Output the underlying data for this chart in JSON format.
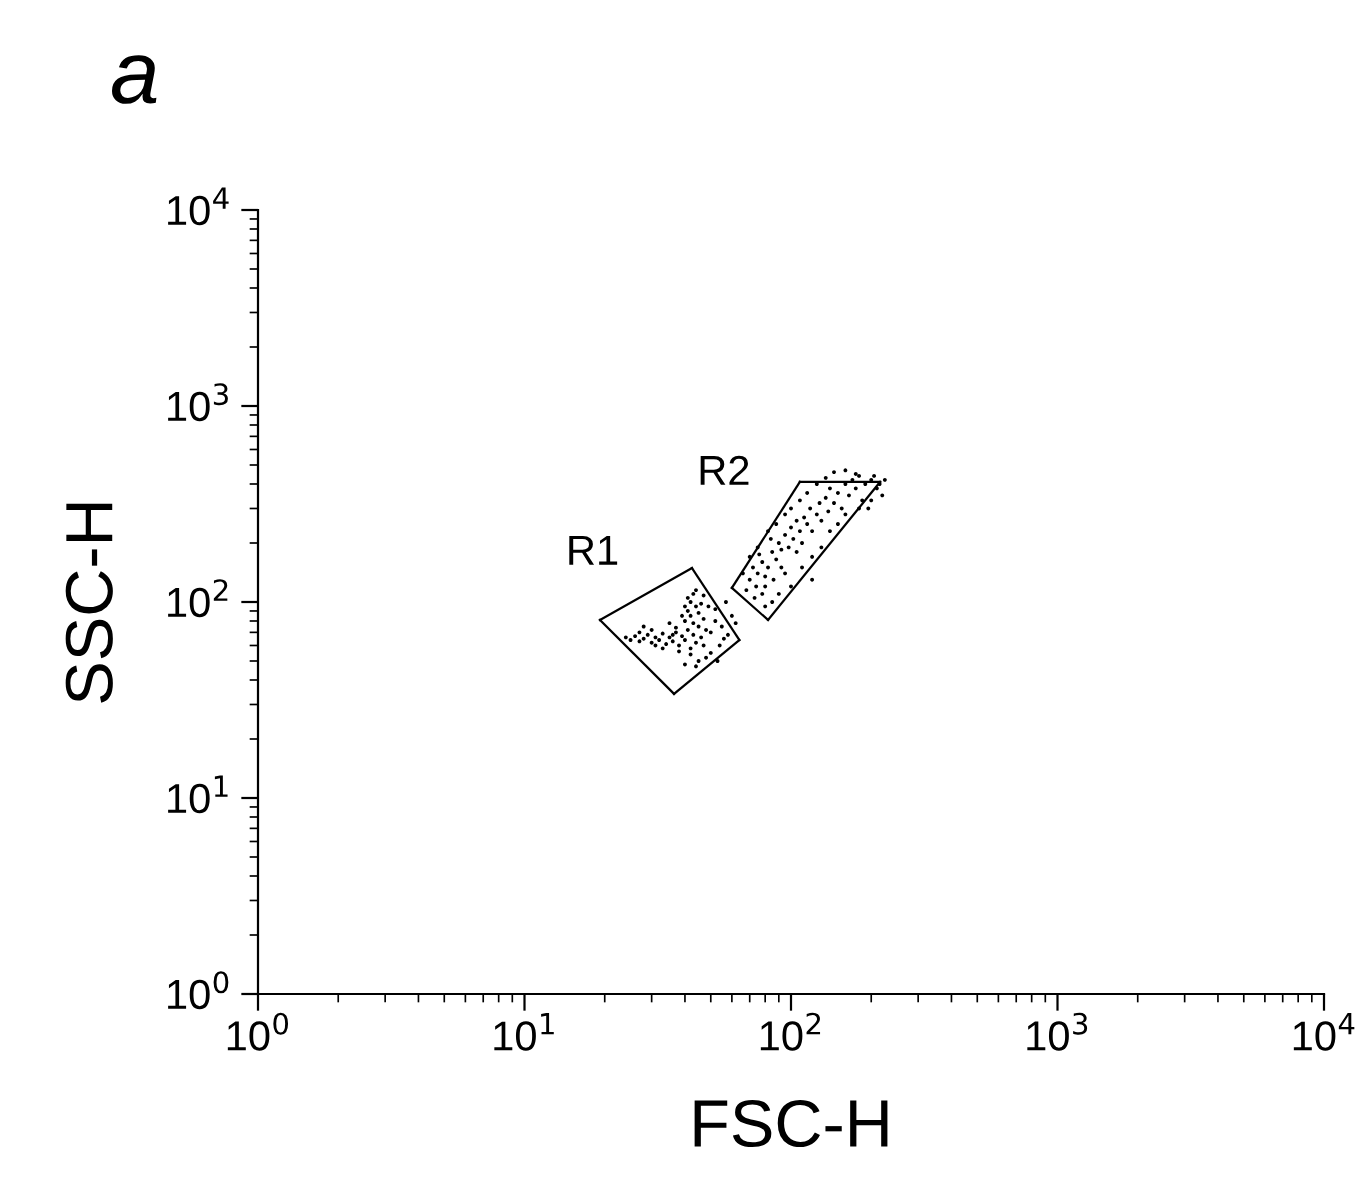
{
  "chart_data": {
    "type": "scatter",
    "title": "a",
    "xlabel": "FSC-H",
    "ylabel": "SSC-H",
    "log": "xy",
    "xlim": [
      1,
      10000
    ],
    "ylim": [
      1,
      10000
    ],
    "xticks": [
      {
        "value": 1,
        "label": "10$^{0}$"
      },
      {
        "value": 10,
        "label": "10$^{1}$"
      },
      {
        "value": 100,
        "label": "10$^{2}$"
      },
      {
        "value": 1000,
        "label": "10$^{3}$"
      },
      {
        "value": 10000,
        "label": "10$^{4}$"
      }
    ],
    "yticks": [
      {
        "value": 1,
        "label": "10$^{0}$"
      },
      {
        "value": 10,
        "label": "10$^{1}$"
      },
      {
        "value": 100,
        "label": "10$^{2}$"
      },
      {
        "value": 1000,
        "label": "10$^{3}$"
      },
      {
        "value": 10000,
        "label": "10$^{4}$"
      }
    ],
    "grid": false,
    "legend": false,
    "marker": "circle",
    "series": [
      {
        "color": "#000000",
        "x": [
          24,
          25,
          26,
          27,
          28,
          29,
          30,
          31,
          32,
          33,
          34,
          35,
          36,
          37,
          38,
          39,
          40,
          41,
          42,
          43,
          44,
          45,
          46,
          47,
          40,
          41,
          42,
          43,
          44,
          42,
          45,
          43,
          41,
          44,
          46,
          40,
          39,
          47,
          48,
          50,
          52,
          55,
          58,
          60,
          54,
          50,
          48,
          45,
          42,
          38,
          33,
          30,
          28,
          35,
          37,
          52,
          57,
          56,
          62,
          49,
          36,
          31,
          27,
          47,
          53,
          44,
          40
        ],
        "values": [
          66,
          64,
          67,
          63,
          65,
          68,
          62,
          66,
          64,
          69,
          61,
          66,
          63,
          70,
          60,
          67,
          64,
          72,
          58,
          68,
          62,
          75,
          66,
          60,
          80,
          90,
          100,
          110,
          95,
          85,
          88,
          78,
          105,
          115,
          98,
          95,
          85,
          82,
          72,
          70,
          80,
          75,
          68,
          85,
          60,
          55,
          52,
          50,
          54,
          56,
          58,
          72,
          75,
          78,
          74,
          92,
          100,
          65,
          78,
          95,
          68,
          60,
          70,
          108,
          50,
          47,
          48
        ]
      },
      {
        "color": "#000000",
        "x": [
          70,
          72,
          75,
          74,
          78,
          80,
          76,
          82,
          85,
          88,
          90,
          84,
          92,
          95,
          98,
          100,
          102,
          105,
          108,
          110,
          112,
          115,
          118,
          120,
          125,
          128,
          130,
          135,
          138,
          140,
          145,
          150,
          155,
          160,
          165,
          170,
          175,
          180,
          190,
          200,
          210,
          220,
          205,
          185,
          195,
          160,
          150,
          140,
          130,
          120,
          110,
          100,
          95,
          90,
          85,
          80,
          78,
          73,
          68,
          66,
          70,
          75,
          82,
          88,
          95,
          100,
          108,
          115,
          125,
          135,
          145,
          160,
          175,
          120,
          105,
          92,
          86,
          80,
          180,
          200,
          215,
          225
        ],
        "values": [
          130,
          150,
          140,
          120,
          160,
          135,
          175,
          150,
          180,
          165,
          200,
          210,
          185,
          220,
          190,
          240,
          210,
          260,
          230,
          200,
          270,
          250,
          300,
          230,
          280,
          320,
          260,
          340,
          290,
          380,
          320,
          360,
          300,
          400,
          350,
          420,
          380,
          440,
          400,
          420,
          380,
          350,
          440,
          330,
          300,
          280,
          250,
          230,
          190,
          170,
          150,
          120,
          140,
          110,
          100,
          95,
          110,
          105,
          115,
          140,
          170,
          190,
          230,
          250,
          280,
          300,
          330,
          360,
          400,
          430,
          460,
          470,
          450,
          130,
          180,
          150,
          130,
          120,
          300,
          330,
          400,
          420
        ]
      },
      {
        "type": "line",
        "color": "#000000",
        "marker": "none",
        "x": [
          19.2,
          42.5
        ],
        "values": [
          81,
          149
        ]
      },
      {
        "type": "line",
        "color": "#000000",
        "marker": "none",
        "x": [
          42.5,
          64
        ],
        "values": [
          149,
          64
        ]
      },
      {
        "type": "line",
        "color": "#000000",
        "marker": "none",
        "x": [
          36.4,
          64
        ],
        "values": [
          34,
          64
        ]
      },
      {
        "type": "line",
        "color": "#000000",
        "marker": "none",
        "x": [
          19.2,
          36.4
        ],
        "values": [
          81,
          34
        ]
      },
      {
        "type": "line",
        "color": "#000000",
        "marker": "none",
        "x": [
          60,
          108
        ],
        "values": [
          118,
          410
        ]
      },
      {
        "type": "line",
        "color": "#000000",
        "marker": "none",
        "x": [
          108,
          216
        ],
        "values": [
          410,
          410
        ]
      },
      {
        "type": "line",
        "color": "#000000",
        "marker": "none",
        "x": [
          82,
          216
        ],
        "values": [
          81,
          410
        ]
      },
      {
        "type": "line",
        "color": "#000000",
        "marker": "none",
        "x": [
          60,
          82
        ],
        "values": [
          118,
          81
        ]
      }
    ],
    "annotations": [
      "R1",
      "R2"
    ]
  }
}
